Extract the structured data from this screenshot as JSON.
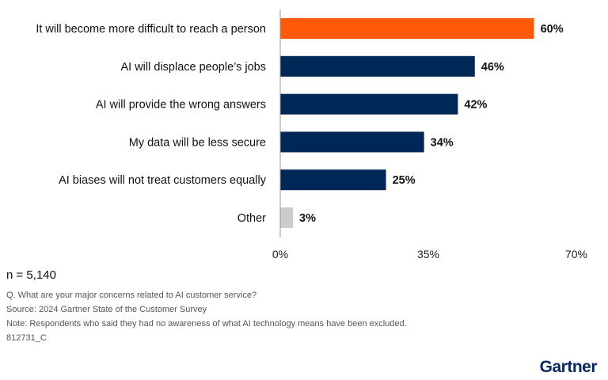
{
  "chart_data": {
    "type": "bar",
    "orientation": "horizontal",
    "categories": [
      "It will become more difficult to reach a person",
      "AI will displace people’s jobs",
      "AI will provide the wrong answers",
      "My data will be less secure",
      "AI biases will not treat customers equally",
      "Other"
    ],
    "values": [
      60,
      46,
      42,
      34,
      25,
      3
    ],
    "value_labels": [
      "60%",
      "46%",
      "42%",
      "34%",
      "25%",
      "3%"
    ],
    "bar_colors": [
      "#FF5A0A",
      "#002856",
      "#002856",
      "#002856",
      "#002856",
      "#CCCCCC"
    ],
    "xlim": [
      0,
      70
    ],
    "xticks": [
      0,
      35,
      70
    ],
    "xtick_labels": [
      "0%",
      "35%",
      "70%"
    ],
    "grid": false,
    "unit": "%"
  },
  "footer": {
    "n": "n = 5,140",
    "question": "Q. What are your major concerns related to AI customer service?",
    "source": "Source: 2024 Gartner State of the Customer Survey",
    "note": "Note: Respondents who said they had no awareness of what AI technology means have been excluded.",
    "id": "812731_C",
    "logo": "Gartner"
  }
}
